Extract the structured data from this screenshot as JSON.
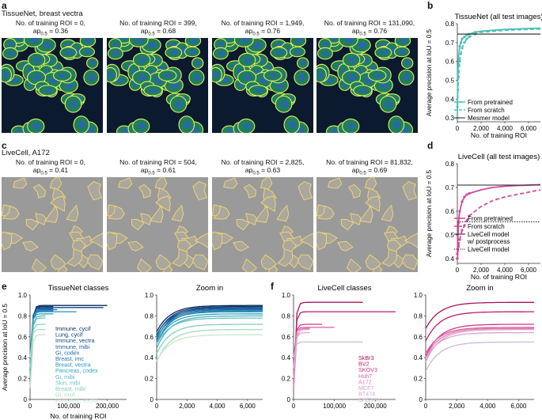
{
  "panel_letters": [
    "a",
    "b",
    "c",
    "d",
    "e",
    "f"
  ],
  "a": {
    "row_title": "TissueNet, breast vectra",
    "tiles": [
      {
        "line1": "No. of training ROI = 0,",
        "ap": "0.36"
      },
      {
        "line1": "No. of training ROI = 399,",
        "ap": "0.68"
      },
      {
        "line1": "No. of training ROI = 1,949,",
        "ap": "0.76"
      },
      {
        "line1": "No. of training ROI = 131,090,",
        "ap": "0.76"
      }
    ],
    "ap_prefix": "ap",
    "ap_sub": "0.5",
    "ap_eq": " = "
  },
  "c": {
    "row_title": "LiveCell, A172",
    "tiles": [
      {
        "line1": "No. of training ROI = 0,",
        "ap": "0.41"
      },
      {
        "line1": "No. of training ROI = 504,",
        "ap": "0.61"
      },
      {
        "line1": "No. of training ROI = 2,825,",
        "ap": "0.63"
      },
      {
        "line1": "No. of training ROI = 81,832,",
        "ap": "0.69"
      }
    ]
  },
  "colors": {
    "teal": "#4fc1b4",
    "magenta": "#d24b9c",
    "ref": "#222222",
    "cell_fill": "#1f7f5a",
    "cell_edge": "#e6f05a",
    "bg_dark": "#0b1a2e",
    "micro_gray": "#9a9a9a",
    "outline_yellow": "#f0d270"
  },
  "chart_data": [
    {
      "id": "b",
      "type": "line",
      "title": "TissueNet (all test images)",
      "xlabel": "No. of training ROI",
      "ylabel": "Average precision at IoU = 0.5",
      "xlim": [
        0,
        7000
      ],
      "ylim": [
        0.28,
        0.8
      ],
      "xticks": [
        "0",
        "2,000",
        "4,000",
        "6,000"
      ],
      "yticks": [
        "0.3",
        "0.4",
        "0.5",
        "0.6",
        "0.7",
        "0.8"
      ],
      "legend_position": "bottom-right",
      "series": [
        {
          "name": "From pretrained",
          "style": "solid",
          "color": "#4fc1b4",
          "x": [
            0,
            50,
            100,
            200,
            300,
            400,
            600,
            800,
            1000,
            1500,
            2000,
            3000,
            4000,
            5000,
            6000,
            7000
          ],
          "y": [
            0.36,
            0.55,
            0.62,
            0.68,
            0.7,
            0.72,
            0.73,
            0.74,
            0.745,
            0.755,
            0.76,
            0.765,
            0.77,
            0.772,
            0.775,
            0.777
          ]
        },
        {
          "name": "From scratch",
          "style": "dashed",
          "color": "#4fc1b4",
          "x": [
            0,
            50,
            100,
            200,
            300,
            400,
            600,
            800,
            1000,
            1500,
            2000,
            3000,
            4000,
            5000,
            6000,
            7000
          ],
          "y": [
            0.3,
            0.45,
            0.52,
            0.6,
            0.64,
            0.67,
            0.7,
            0.72,
            0.73,
            0.745,
            0.755,
            0.76,
            0.765,
            0.768,
            0.77,
            0.772
          ]
        },
        {
          "name": "Mesmer model",
          "style": "solid",
          "color": "#222222",
          "x": [
            0,
            7000
          ],
          "y": [
            0.745,
            0.745
          ]
        }
      ]
    },
    {
      "id": "d",
      "type": "line",
      "title": "LiveCell (all test images)",
      "xlabel": "No. of training ROI",
      "ylabel": "Average precision at IoU = 0.5",
      "xlim": [
        0,
        7000
      ],
      "ylim": [
        0.38,
        0.8
      ],
      "xticks": [
        "0",
        "2,000",
        "4,000",
        "6,000"
      ],
      "yticks": [
        "0.4",
        "0.5",
        "0.6",
        "0.7",
        "0.8"
      ],
      "legend_position": "bottom-right",
      "series": [
        {
          "name": "From pretrained",
          "style": "solid",
          "color": "#d24b9c",
          "x": [
            0,
            100,
            200,
            400,
            600,
            800,
            1000,
            2000,
            3000,
            4000,
            5000,
            6000,
            7000
          ],
          "y": [
            0.42,
            0.55,
            0.6,
            0.64,
            0.66,
            0.67,
            0.675,
            0.69,
            0.7,
            0.705,
            0.708,
            0.71,
            0.712
          ]
        },
        {
          "name": "From scratch",
          "style": "dashed",
          "color": "#d24b9c",
          "x": [
            0,
            100,
            200,
            400,
            600,
            800,
            1000,
            2000,
            3000,
            4000,
            5000,
            6000,
            7000
          ],
          "y": [
            0.4,
            0.45,
            0.48,
            0.52,
            0.54,
            0.56,
            0.58,
            0.62,
            0.645,
            0.66,
            0.67,
            0.68,
            0.69
          ]
        },
        {
          "name": "LiveCell model w/ postprocess",
          "style": "solid",
          "color": "#222222",
          "x": [
            0,
            7000
          ],
          "y": [
            0.71,
            0.71
          ]
        },
        {
          "name": "LiveCell model",
          "style": "dotted",
          "color": "#222222",
          "x": [
            0,
            7000
          ],
          "y": [
            0.555,
            0.555
          ]
        }
      ]
    },
    {
      "id": "e",
      "type": "line",
      "title": "TissueNet classes",
      "ylabel": "Average precision at IoU = 0.5",
      "xlabel": "No. of training ROI",
      "xlim": [
        0,
        250000
      ],
      "ylim": [
        0,
        1.0
      ],
      "xticks": [
        "0",
        "100,000",
        "200,000"
      ],
      "yticks": [
        "0",
        "0.2",
        "0.4",
        "0.6",
        "0.8",
        "1.0"
      ],
      "legend_position": "center-right",
      "series": [
        {
          "name": "Immune, cycif",
          "color": "#0b2a55",
          "plateau": 0.9,
          "xend": 200000
        },
        {
          "name": "Lung, cycif",
          "color": "#0f3a6e",
          "plateau": 0.89,
          "xend": 60000
        },
        {
          "name": "Immune, vectra",
          "color": "#134a86",
          "plateau": 0.88,
          "xend": 190000
        },
        {
          "name": "Immune, mibi",
          "color": "#175a9a",
          "plateau": 0.87,
          "xend": 60000
        },
        {
          "name": "Gi, codex",
          "color": "#1a6aa8",
          "plateau": 0.86,
          "xend": 70000
        },
        {
          "name": "Breast, imc",
          "color": "#1f7db3",
          "plateau": 0.85,
          "xend": 60000
        },
        {
          "name": "Breast, vectra",
          "color": "#2590b8",
          "plateau": 0.84,
          "xend": 120000
        },
        {
          "name": "Pancreas, codex",
          "color": "#33a3bd",
          "plateau": 0.82,
          "xend": 60000
        },
        {
          "name": "Gi, mibi",
          "color": "#4bb5c0",
          "plateau": 0.8,
          "xend": 40000
        },
        {
          "name": "Skin, mibi",
          "color": "#66c2c0",
          "plateau": 0.78,
          "xend": 40000
        },
        {
          "name": "Breast, mibi",
          "color": "#85cebc",
          "plateau": 0.72,
          "xend": 40000
        },
        {
          "name": "Gi, mxif",
          "color": "#a6dbbf",
          "plateau": 0.67,
          "xend": 40000
        },
        {
          "name": "Pancreas, vectra",
          "color": "#c7e9c8",
          "plateau": 0.62,
          "xend": 40000
        }
      ]
    },
    {
      "id": "e_zoom",
      "type": "line",
      "title": "Zoom in",
      "xlim": [
        0,
        7000
      ],
      "ylim": [
        0,
        1.0
      ],
      "xticks": [
        "0",
        "2,000",
        "4,000",
        "6,000"
      ],
      "yticks": [
        "0",
        "0.2",
        "0.4",
        "0.6",
        "0.8",
        "1.0"
      ]
    },
    {
      "id": "f",
      "type": "line",
      "title": "LiveCell classes",
      "xlim": [
        0,
        250000
      ],
      "ylim": [
        0,
        1.0
      ],
      "xticks": [
        "0",
        "100,000",
        "200,000"
      ],
      "yticks": [
        "0",
        "0.2",
        "0.4",
        "0.6",
        "0.8",
        "1.0"
      ],
      "legend_position": "bottom-right",
      "series": [
        {
          "name": "SkBr3",
          "color": "#a8115a",
          "plateau": 0.93,
          "xend": 170000
        },
        {
          "name": "BV2",
          "color": "#c01c6a",
          "plateau": 0.84,
          "xend": 250000
        },
        {
          "name": "SKOV3",
          "color": "#cf3a84",
          "plateau": 0.72,
          "xend": 70000
        },
        {
          "name": "Huh7",
          "color": "#d95ea0",
          "plateau": 0.69,
          "xend": 100000
        },
        {
          "name": "A172",
          "color": "#e07fb5",
          "plateau": 0.68,
          "xend": 40000
        },
        {
          "name": "MCF7",
          "color": "#e59dc6",
          "plateau": 0.67,
          "xend": 40000
        },
        {
          "name": "BT474",
          "color": "#d6a7cf",
          "plateau": 0.64,
          "xend": 40000
        },
        {
          "name": "SHSY5Y",
          "color": "#cbbad8",
          "plateau": 0.55,
          "xend": 170000
        }
      ]
    },
    {
      "id": "f_zoom",
      "type": "line",
      "title": "Zoom in",
      "xlim": [
        0,
        7000
      ],
      "ylim": [
        0,
        1.0
      ],
      "xticks": [
        "0",
        "2,000",
        "4,000",
        "6,000"
      ],
      "yticks": [
        "0",
        "0.2",
        "0.4",
        "0.6",
        "0.8",
        "1.0"
      ]
    }
  ]
}
